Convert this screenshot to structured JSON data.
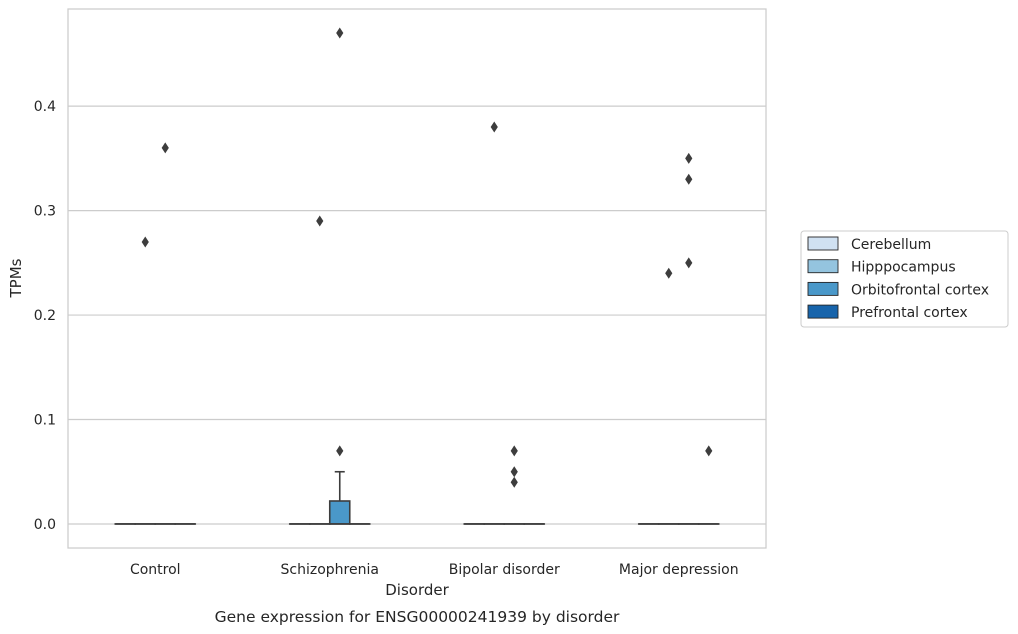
{
  "chart_data": {
    "type": "box",
    "title": "",
    "caption": "Gene expression for ENSG00000241939 by disorder",
    "xlabel": "Disorder",
    "ylabel": "TPMs",
    "categories": [
      "Control",
      "Schizophrenia",
      "Bipolar disorder",
      "Major depression"
    ],
    "ylim": [
      -0.023,
      0.493
    ],
    "yticks": [
      0.0,
      0.1,
      0.2,
      0.3,
      0.4
    ],
    "ytick_labels": [
      "0.0",
      "0.1",
      "0.2",
      "0.3",
      "0.4"
    ],
    "grid": "horizontal",
    "legend": {
      "position": "right"
    },
    "series": [
      {
        "name": "Cerebellum",
        "color": "#d0e1f2",
        "boxes": [
          {
            "category": "Control",
            "q1": 0,
            "median": 0,
            "q3": 0,
            "whisker_low": 0,
            "whisker_high": 0,
            "outliers": []
          },
          {
            "category": "Schizophrenia",
            "q1": 0,
            "median": 0,
            "q3": 0,
            "whisker_low": 0,
            "whisker_high": 0,
            "outliers": []
          },
          {
            "category": "Bipolar disorder",
            "q1": 0,
            "median": 0,
            "q3": 0,
            "whisker_low": 0,
            "whisker_high": 0,
            "outliers": []
          },
          {
            "category": "Major depression",
            "q1": 0,
            "median": 0,
            "q3": 0,
            "whisker_low": 0,
            "whisker_high": 0,
            "outliers": []
          }
        ]
      },
      {
        "name": "Hipppocampus",
        "color": "#94c4df",
        "boxes": [
          {
            "category": "Control",
            "q1": 0,
            "median": 0,
            "q3": 0,
            "whisker_low": 0,
            "whisker_high": 0,
            "outliers": [
              0.27
            ]
          },
          {
            "category": "Schizophrenia",
            "q1": 0,
            "median": 0,
            "q3": 0,
            "whisker_low": 0,
            "whisker_high": 0,
            "outliers": [
              0.29
            ]
          },
          {
            "category": "Bipolar disorder",
            "q1": 0,
            "median": 0,
            "q3": 0,
            "whisker_low": 0,
            "whisker_high": 0,
            "outliers": [
              0.38
            ]
          },
          {
            "category": "Major depression",
            "q1": 0,
            "median": 0,
            "q3": 0,
            "whisker_low": 0,
            "whisker_high": 0,
            "outliers": [
              0.24
            ]
          }
        ]
      },
      {
        "name": "Orbitofrontal cortex",
        "color": "#4a98c9",
        "boxes": [
          {
            "category": "Control",
            "q1": 0,
            "median": 0,
            "q3": 0,
            "whisker_low": 0,
            "whisker_high": 0,
            "outliers": [
              0.36
            ]
          },
          {
            "category": "Schizophrenia",
            "q1": 0,
            "median": 0,
            "q3": 0.022,
            "whisker_low": 0,
            "whisker_high": 0.05,
            "outliers": [
              0.07,
              0.47
            ]
          },
          {
            "category": "Bipolar disorder",
            "q1": 0,
            "median": 0,
            "q3": 0,
            "whisker_low": 0,
            "whisker_high": 0,
            "outliers": [
              0.04,
              0.05,
              0.07
            ]
          },
          {
            "category": "Major depression",
            "q1": 0,
            "median": 0,
            "q3": 0,
            "whisker_low": 0,
            "whisker_high": 0,
            "outliers": [
              0.25,
              0.33,
              0.35
            ]
          }
        ]
      },
      {
        "name": "Prefrontal cortex",
        "color": "#1764ab",
        "boxes": [
          {
            "category": "Control",
            "q1": 0,
            "median": 0,
            "q3": 0,
            "whisker_low": 0,
            "whisker_high": 0,
            "outliers": []
          },
          {
            "category": "Schizophrenia",
            "q1": 0,
            "median": 0,
            "q3": 0,
            "whisker_low": 0,
            "whisker_high": 0,
            "outliers": []
          },
          {
            "category": "Bipolar disorder",
            "q1": 0,
            "median": 0,
            "q3": 0,
            "whisker_low": 0,
            "whisker_high": 0,
            "outliers": []
          },
          {
            "category": "Major depression",
            "q1": 0,
            "median": 0,
            "q3": 0,
            "whisker_low": 0,
            "whisker_high": 0,
            "outliers": [
              0.07
            ]
          }
        ]
      }
    ]
  }
}
